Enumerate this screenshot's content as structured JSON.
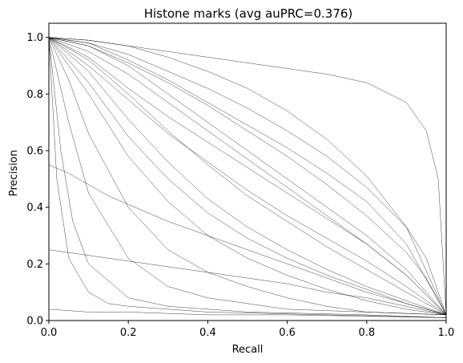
{
  "chart_data": {
    "type": "line",
    "title": "Histone marks (avg auPRC=0.376)",
    "xlabel": "Recall",
    "ylabel": "Precision",
    "xlim": [
      0.0,
      1.0
    ],
    "ylim": [
      0.0,
      1.05
    ],
    "xticks": [
      "0.0",
      "0.2",
      "0.4",
      "0.6",
      "0.8",
      "1.0"
    ],
    "yticks": [
      "0.0",
      "0.2",
      "0.4",
      "0.6",
      "0.8",
      "1.0"
    ],
    "grid": false,
    "legend": "none",
    "line_color": "#000000",
    "series": [
      {
        "x": [
          0.0,
          0.1,
          0.2,
          0.3,
          0.4,
          0.5,
          0.6,
          0.7,
          0.8,
          0.9,
          0.95,
          0.98,
          1.0
        ],
        "y": [
          1.0,
          0.99,
          0.97,
          0.95,
          0.93,
          0.91,
          0.89,
          0.87,
          0.84,
          0.77,
          0.67,
          0.5,
          0.02
        ]
      },
      {
        "x": [
          0.0,
          0.1,
          0.2,
          0.3,
          0.4,
          0.5,
          0.6,
          0.7,
          0.8,
          0.9,
          0.95,
          1.0
        ],
        "y": [
          1.0,
          0.98,
          0.94,
          0.88,
          0.82,
          0.75,
          0.67,
          0.58,
          0.47,
          0.33,
          0.22,
          0.02
        ]
      },
      {
        "x": [
          0.0,
          0.1,
          0.2,
          0.3,
          0.4,
          0.5,
          0.6,
          0.7,
          0.8,
          0.9,
          0.95,
          1.0
        ],
        "y": [
          1.0,
          0.97,
          0.91,
          0.84,
          0.76,
          0.67,
          0.58,
          0.48,
          0.37,
          0.24,
          0.15,
          0.02
        ]
      },
      {
        "x": [
          0.0,
          0.1,
          0.2,
          0.3,
          0.4,
          0.5,
          0.6,
          0.7,
          0.8,
          0.9,
          1.0
        ],
        "y": [
          1.0,
          0.95,
          0.87,
          0.77,
          0.67,
          0.57,
          0.47,
          0.37,
          0.27,
          0.16,
          0.02
        ]
      },
      {
        "x": [
          0.0,
          0.1,
          0.2,
          0.3,
          0.4,
          0.5,
          0.6,
          0.7,
          0.8,
          0.9,
          1.0
        ],
        "y": [
          1.0,
          0.92,
          0.8,
          0.67,
          0.55,
          0.44,
          0.35,
          0.26,
          0.18,
          0.1,
          0.02
        ]
      },
      {
        "x": [
          0.0,
          0.1,
          0.2,
          0.3,
          0.4,
          0.5,
          0.6,
          0.7,
          0.8,
          0.9,
          1.0
        ],
        "y": [
          1.0,
          0.88,
          0.71,
          0.56,
          0.43,
          0.33,
          0.25,
          0.18,
          0.12,
          0.07,
          0.02
        ]
      },
      {
        "x": [
          0.0,
          0.1,
          0.2,
          0.3,
          0.4,
          0.5,
          0.6,
          0.7,
          0.8,
          0.9,
          1.0
        ],
        "y": [
          1.0,
          0.8,
          0.58,
          0.42,
          0.3,
          0.22,
          0.16,
          0.11,
          0.07,
          0.04,
          0.02
        ]
      },
      {
        "x": [
          0.0,
          0.05,
          0.1,
          0.2,
          0.3,
          0.4,
          0.5,
          0.6,
          0.7,
          0.8,
          1.0
        ],
        "y": [
          1.0,
          0.85,
          0.66,
          0.4,
          0.25,
          0.17,
          0.12,
          0.08,
          0.05,
          0.03,
          0.02
        ]
      },
      {
        "x": [
          0.0,
          0.05,
          0.1,
          0.2,
          0.3,
          0.4,
          0.6,
          0.8,
          1.0
        ],
        "y": [
          1.0,
          0.7,
          0.45,
          0.22,
          0.12,
          0.08,
          0.04,
          0.03,
          0.02
        ]
      },
      {
        "x": [
          0.0,
          0.03,
          0.06,
          0.1,
          0.2,
          0.3,
          0.5,
          0.8,
          1.0
        ],
        "y": [
          1.0,
          0.6,
          0.35,
          0.2,
          0.08,
          0.05,
          0.03,
          0.02,
          0.01
        ]
      },
      {
        "x": [
          0.0,
          0.1,
          0.2,
          0.3,
          0.4,
          0.5,
          0.6,
          0.7,
          0.8,
          0.9,
          1.0
        ],
        "y": [
          1.0,
          0.99,
          0.97,
          0.93,
          0.88,
          0.82,
          0.74,
          0.64,
          0.51,
          0.33,
          0.02
        ]
      },
      {
        "x": [
          0.0,
          0.1,
          0.2,
          0.3,
          0.4,
          0.5,
          0.6,
          0.7,
          0.8,
          0.9,
          1.0
        ],
        "y": [
          1.0,
          0.97,
          0.9,
          0.8,
          0.7,
          0.6,
          0.5,
          0.4,
          0.3,
          0.18,
          0.02
        ]
      },
      {
        "x": [
          0.0,
          0.1,
          0.2,
          0.3,
          0.4,
          0.5,
          0.6,
          0.7,
          0.8,
          0.9,
          1.0
        ],
        "y": [
          1.0,
          0.9,
          0.78,
          0.66,
          0.56,
          0.46,
          0.37,
          0.29,
          0.21,
          0.12,
          0.02
        ]
      },
      {
        "x": [
          0.0,
          0.1,
          0.2,
          0.3,
          0.4,
          0.5,
          0.6,
          0.7,
          0.8,
          0.9,
          1.0
        ],
        "y": [
          1.0,
          0.84,
          0.65,
          0.5,
          0.38,
          0.29,
          0.22,
          0.16,
          0.11,
          0.06,
          0.02
        ]
      },
      {
        "x": [
          0.0,
          0.05,
          0.1,
          0.15,
          0.2,
          0.3,
          0.4,
          0.5,
          0.6,
          0.8,
          1.0
        ],
        "y": [
          0.55,
          0.52,
          0.48,
          0.44,
          0.41,
          0.35,
          0.3,
          0.25,
          0.2,
          0.1,
          0.02
        ]
      },
      {
        "x": [
          0.0,
          0.1,
          0.2,
          0.3,
          0.4,
          0.5,
          0.6,
          0.7,
          0.8,
          0.9,
          1.0
        ],
        "y": [
          0.25,
          0.23,
          0.21,
          0.19,
          0.17,
          0.15,
          0.13,
          0.1,
          0.08,
          0.05,
          0.02
        ]
      },
      {
        "x": [
          0.0,
          0.02,
          0.05,
          0.1,
          0.15,
          0.2,
          0.4,
          0.7,
          1.0
        ],
        "y": [
          1.0,
          0.5,
          0.22,
          0.1,
          0.06,
          0.05,
          0.03,
          0.02,
          0.01
        ]
      },
      {
        "x": [
          0.0,
          0.1,
          0.2,
          0.4,
          0.6,
          0.8,
          1.0
        ],
        "y": [
          0.04,
          0.03,
          0.03,
          0.02,
          0.02,
          0.015,
          0.01
        ]
      },
      {
        "x": [
          0.0,
          0.1,
          0.2,
          0.3,
          0.4,
          0.5,
          0.6,
          0.7,
          0.8,
          0.9,
          1.0
        ],
        "y": [
          1.0,
          0.98,
          0.92,
          0.85,
          0.77,
          0.69,
          0.61,
          0.52,
          0.42,
          0.27,
          0.02
        ]
      },
      {
        "x": [
          0.0,
          0.1,
          0.2,
          0.3,
          0.4,
          0.5,
          0.6,
          0.7,
          0.8,
          0.9,
          1.0
        ],
        "y": [
          1.0,
          0.93,
          0.82,
          0.72,
          0.63,
          0.54,
          0.45,
          0.36,
          0.27,
          0.16,
          0.02
        ]
      }
    ]
  }
}
